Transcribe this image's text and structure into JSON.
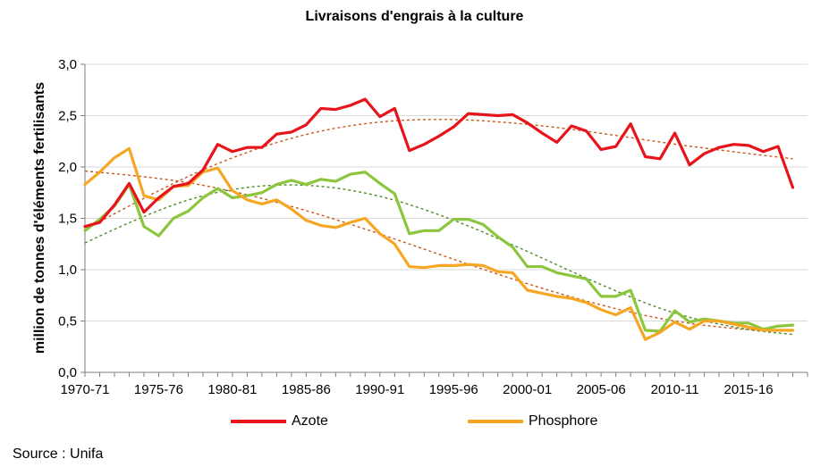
{
  "chart_data": {
    "type": "line",
    "title": "Livraisons d'engrais à la culture",
    "ylabel": "million de tonnes d'éléments fertilisants",
    "ylim": [
      0,
      3
    ],
    "yticks": [
      "0,0",
      "0,5",
      "1,0",
      "1,5",
      "2,0",
      "2,5",
      "3,0"
    ],
    "xlim": [
      1970,
      2019
    ],
    "xtick_labels": [
      "1970-71",
      "1975-76",
      "1980-81",
      "1985-86",
      "1990-91",
      "1995-96",
      "2000-01",
      "2005-06",
      "2010-11",
      "2015-16"
    ],
    "grid": "horizontal",
    "legend": "bottom",
    "series": [
      {
        "name": "Azote",
        "color": "#e8141b",
        "x": [
          1970,
          1971,
          1972,
          1973,
          1974,
          1975,
          1976,
          1977,
          1978,
          1979,
          1980,
          1981,
          1982,
          1983,
          1984,
          1985,
          1986,
          1987,
          1988,
          1989,
          1990,
          1991,
          1992,
          1993,
          1994,
          1995,
          1996,
          1997,
          1998,
          1999,
          2000,
          2001,
          2002,
          2003,
          2004,
          2005,
          2006,
          2007,
          2008,
          2009,
          2010,
          2011,
          2012,
          2013,
          2014,
          2015,
          2016,
          2017,
          2018
        ],
        "values": [
          1.42,
          1.46,
          1.63,
          1.84,
          1.56,
          1.7,
          1.81,
          1.84,
          1.97,
          2.22,
          2.15,
          2.19,
          2.19,
          2.32,
          2.34,
          2.41,
          2.57,
          2.56,
          2.6,
          2.66,
          2.49,
          2.57,
          2.16,
          2.22,
          2.3,
          2.39,
          2.52,
          2.51,
          2.5,
          2.51,
          2.43,
          2.33,
          2.24,
          2.4,
          2.35,
          2.17,
          2.2,
          2.42,
          2.1,
          2.08,
          2.33,
          2.02,
          2.13,
          2.19,
          2.22,
          2.21,
          2.15,
          2.2,
          1.8
        ]
      },
      {
        "name": "Phosphore",
        "color": "#f5a623",
        "x": [
          1970,
          1971,
          1972,
          1973,
          1974,
          1975,
          1976,
          1977,
          1978,
          1979,
          1980,
          1981,
          1982,
          1983,
          1984,
          1985,
          1986,
          1987,
          1988,
          1989,
          1990,
          1991,
          1992,
          1993,
          1994,
          1995,
          1996,
          1997,
          1998,
          1999,
          2000,
          2001,
          2002,
          2003,
          2004,
          2005,
          2006,
          2007,
          2008,
          2009,
          2010,
          2011,
          2012,
          2013,
          2014,
          2015,
          2016,
          2017,
          2018
        ],
        "values": [
          1.83,
          1.95,
          2.09,
          2.18,
          1.72,
          1.68,
          1.81,
          1.82,
          1.95,
          1.99,
          1.77,
          1.68,
          1.64,
          1.68,
          1.59,
          1.48,
          1.43,
          1.41,
          1.46,
          1.5,
          1.35,
          1.25,
          1.03,
          1.02,
          1.04,
          1.04,
          1.05,
          1.04,
          0.98,
          0.97,
          0.8,
          0.77,
          0.74,
          0.72,
          0.68,
          0.61,
          0.56,
          0.63,
          0.32,
          0.39,
          0.49,
          0.42,
          0.5,
          0.5,
          0.47,
          0.44,
          0.41,
          0.41,
          0.41
        ]
      },
      {
        "color": "#8cc63e",
        "x": [
          1970,
          1971,
          1972,
          1973,
          1974,
          1975,
          1976,
          1977,
          1978,
          1979,
          1980,
          1981,
          1982,
          1983,
          1984,
          1985,
          1986,
          1987,
          1988,
          1989,
          1990,
          1991,
          1992,
          1993,
          1994,
          1995,
          1996,
          1997,
          1998,
          1999,
          2000,
          2001,
          2002,
          2003,
          2004,
          2005,
          2006,
          2007,
          2008,
          2009,
          2010,
          2011,
          2012,
          2013,
          2014,
          2015,
          2016,
          2017,
          2018
        ],
        "values": [
          1.38,
          1.49,
          1.62,
          1.83,
          1.42,
          1.33,
          1.5,
          1.57,
          1.7,
          1.79,
          1.7,
          1.72,
          1.75,
          1.83,
          1.87,
          1.83,
          1.88,
          1.86,
          1.93,
          1.95,
          1.84,
          1.74,
          1.35,
          1.38,
          1.38,
          1.49,
          1.49,
          1.44,
          1.32,
          1.22,
          1.03,
          1.03,
          0.97,
          0.94,
          0.91,
          0.74,
          0.74,
          0.8,
          0.41,
          0.4,
          0.6,
          0.49,
          0.52,
          0.5,
          0.48,
          0.48,
          0.42,
          0.45,
          0.46
        ]
      }
    ],
    "trendlines": [
      {
        "color": "#c8581c",
        "x": [
          1970,
          1975,
          1980,
          1985,
          1990,
          1995,
          2000,
          2005,
          2010,
          2015,
          2018
        ],
        "values": [
          1.39,
          1.78,
          2.1,
          2.33,
          2.45,
          2.47,
          2.42,
          2.33,
          2.22,
          2.13,
          2.08
        ]
      },
      {
        "color": "#c8581c",
        "x": [
          1970,
          1975,
          1980,
          1985,
          1990,
          1995,
          2000,
          2005,
          2010,
          2015,
          2018
        ],
        "values": [
          1.96,
          1.9,
          1.77,
          1.58,
          1.35,
          1.1,
          0.86,
          0.65,
          0.49,
          0.41,
          0.4
        ]
      },
      {
        "color": "#4f8a2b",
        "x": [
          1970,
          1975,
          1980,
          1985,
          1990,
          1995,
          2000,
          2005,
          2010,
          2015,
          2018
        ],
        "values": [
          1.26,
          1.6,
          1.8,
          1.84,
          1.73,
          1.49,
          1.18,
          0.85,
          0.56,
          0.41,
          0.37
        ]
      }
    ]
  },
  "source": "Source : Unifa"
}
